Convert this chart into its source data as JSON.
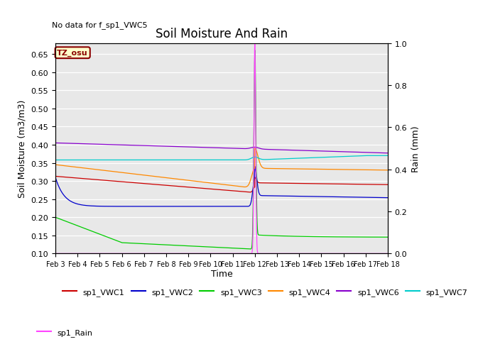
{
  "title": "Soil Moisture And Rain",
  "subtitle": "No data for f_sp1_VWC5",
  "xlabel": "Time",
  "ylabel_left": "Soil Moisture (m3/m3)",
  "ylabel_right": "Rain (mm)",
  "annotation": "TZ_osu",
  "ylim_left": [
    0.1,
    0.68
  ],
  "ylim_right": [
    0.0,
    1.0
  ],
  "yticks_left": [
    0.1,
    0.15,
    0.2,
    0.25,
    0.3,
    0.35,
    0.4,
    0.45,
    0.5,
    0.55,
    0.6,
    0.65
  ],
  "yticks_right": [
    0.0,
    0.2,
    0.4,
    0.6,
    0.8,
    1.0
  ],
  "xtick_labels": [
    "Feb 3",
    "Feb 4",
    "Feb 5",
    "Feb 6",
    "Feb 7",
    "Feb 8",
    "Feb 9",
    "Feb 10",
    "Feb 11",
    "Feb 12",
    "Feb 13",
    "Feb 14",
    "Feb 15",
    "Feb 16",
    "Feb 17",
    "Feb 18"
  ],
  "background_color": "#e8e8e8",
  "series_colors": {
    "sp1_VWC1": "#cc0000",
    "sp1_VWC2": "#0000cc",
    "sp1_VWC3": "#00cc00",
    "sp1_VWC4": "#ff8800",
    "sp1_VWC6": "#8800cc",
    "sp1_VWC7": "#00cccc",
    "sp1_Rain": "#ff44ff"
  },
  "legend_order": [
    "sp1_VWC1",
    "sp1_VWC2",
    "sp1_VWC3",
    "sp1_VWC4",
    "sp1_VWC6",
    "sp1_VWC7",
    "sp1_Rain"
  ]
}
